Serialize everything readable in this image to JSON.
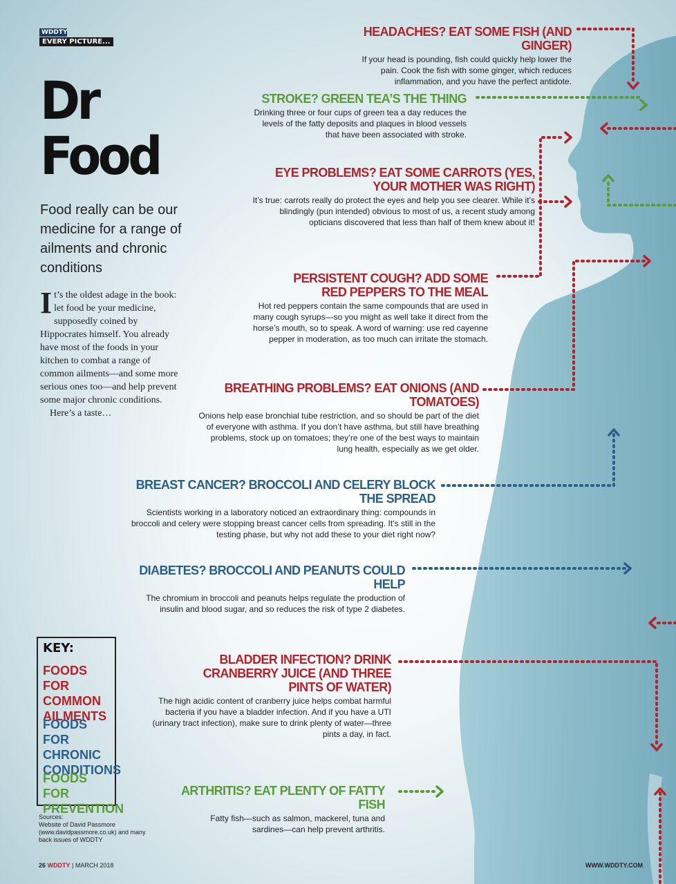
{
  "brand": {
    "name": "WDDTY",
    "section": "EVERY PICTURE..."
  },
  "title_line1": "Dr",
  "title_line2": "Food",
  "subtitle": "Food really can be our medicine for a range of ailments and chronic conditions",
  "intro": {
    "drop_cap": "I",
    "text": "t’s the oldest adage in the book: let food be your medicine, supposedly coined by Hippocrates himself. You already have most of the foods in your kitchen to combat a range of common ailments—and some more serious ones too—and help prevent some major chronic conditions.",
    "closing": "Here’s a taste…"
  },
  "entries": [
    {
      "heading": "HEADACHES? EAT SOME FISH (AND GINGER)",
      "body": "If your head is pounding, fish could quickly help lower the pain. Cook the fish with some ginger, which reduces inflammation, and you have the perfect antidote.",
      "category": "red"
    },
    {
      "heading": "STROKE? GREEN TEA’S THE THING",
      "body": "Drinking three or four cups of green tea a day reduces the levels of the fatty deposits and plaques in blood vessels that have been associated with stroke.",
      "category": "green"
    },
    {
      "heading": "EYE PROBLEMS? EAT SOME CARROTS (YES, YOUR MOTHER WAS RIGHT)",
      "body": "It’s true: carrots really do protect the eyes and help you see clearer. While it’s blindingly (pun intended) obvious to most of us, a recent study among opticians discovered that less than half of them knew about it!",
      "category": "red"
    },
    {
      "heading": "PERSISTENT COUGH? ADD SOME RED PEPPERS TO THE MEAL",
      "body": "Hot red peppers contain the same compounds that are used in many cough syrups—so you might as well take it direct from the horse’s mouth, so to speak. A word of warning: use red cayenne pepper in moderation, as too much can irritate the stomach.",
      "category": "red"
    },
    {
      "heading": "BREATHING PROBLEMS? EAT ONIONS (AND TOMATOES)",
      "body": "Onions help ease bronchial tube restriction, and so should be part of the diet of everyone with asthma. If you don’t have asthma, but still have breathing problems, stock up on tomatoes; they’re one of the best ways to maintain lung health, especially as we get older.",
      "category": "red"
    },
    {
      "heading": "BREAST CANCER? BROCCOLI AND CELERY BLOCK THE SPREAD",
      "body": "Scientists working in a laboratory noticed an extraordinary thing: compounds in broccoli and celery were stopping breast cancer cells from spreading. It’s still in the testing phase, but why not add these to your diet right now?",
      "category": "blue"
    },
    {
      "heading": "DIABETES? BROCCOLI AND PEANUTS COULD HELP",
      "body": "The chromium in broccoli and peanuts helps regulate the production of insulin and blood sugar, and so reduces the risk of type 2 diabetes.",
      "category": "blue"
    },
    {
      "heading": "BLADDER INFECTION? DRINK CRANBERRY JUICE (AND THREE PINTS OF WATER)",
      "body": "The high acidic content of cranberry juice helps combat harmful bacteria if you have a bladder infection. And if you have a UTI (urinary tract infection), make sure to drink plenty of water—three pints a day, in fact.",
      "category": "red"
    },
    {
      "heading": "ARTHRITIS? EAT PLENTY OF FATTY FISH",
      "body": "Fatty fish—such as salmon, mackerel, tuna and sardines—can help prevent arthritis.",
      "category": "green"
    }
  ],
  "key": {
    "title": "KEY:",
    "items": [
      {
        "label": "FOODS FOR COMMON AILMENTS",
        "color": "#b2232b"
      },
      {
        "label": "FOODS FOR CHRONIC CONDITIONS",
        "color": "#2a5f8b"
      },
      {
        "label": "FOODS FOR PREVENTION",
        "color": "#5a9a3b"
      }
    ]
  },
  "sources": {
    "label": "Sources:",
    "text": "Website of David Passmore (www.davidpassmore.co.uk) and many back issues of WDDTY"
  },
  "footer": {
    "page": "26",
    "brand": "WDDTY",
    "date": "MARCH 2018",
    "url": "WWW.WDDTY.COM"
  },
  "colors": {
    "red": "#b2232b",
    "blue": "#2a5f8b",
    "green": "#5a9a3b"
  }
}
